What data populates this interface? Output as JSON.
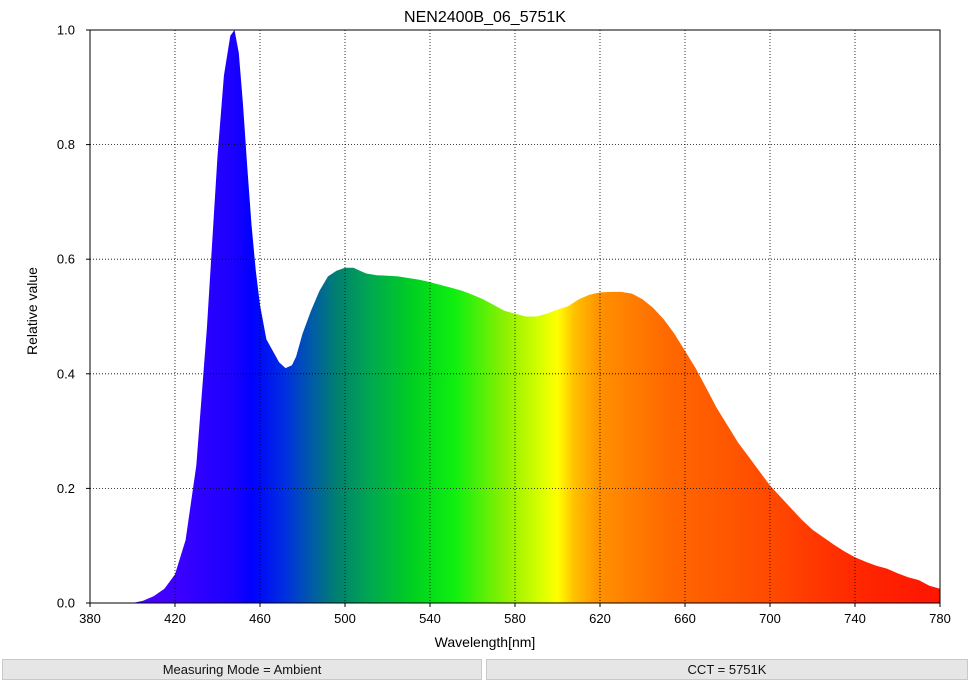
{
  "chart_data": {
    "type": "area",
    "title": "NEN2400B_06_5751K",
    "xlabel": "Wavelength[nm]",
    "ylabel": "Relative value",
    "xlim": [
      380,
      780
    ],
    "ylim": [
      0,
      1.0
    ],
    "x_ticks": [
      "380",
      "420",
      "460",
      "500",
      "540",
      "580",
      "620",
      "660",
      "700",
      "740",
      "780"
    ],
    "y_ticks": [
      "0.0",
      "0.2",
      "0.4",
      "0.6",
      "0.8",
      "1.0"
    ],
    "grid": true,
    "fill": "visible-spectrum color gradient",
    "series": [
      {
        "x": [
          400,
          405,
          410,
          415,
          420,
          425,
          430,
          435,
          440,
          443,
          446,
          448,
          450,
          452,
          454,
          456,
          458,
          460,
          463,
          466,
          469,
          472,
          475,
          477,
          480,
          484,
          488,
          492,
          496,
          500,
          504,
          507,
          510,
          515,
          520,
          525,
          530,
          535,
          540,
          545,
          550,
          555,
          560,
          565,
          570,
          575,
          580,
          585,
          590,
          595,
          600,
          605,
          610,
          615,
          620,
          625,
          630,
          635,
          640,
          645,
          650,
          655,
          660,
          665,
          670,
          675,
          680,
          685,
          690,
          695,
          700,
          705,
          710,
          715,
          720,
          725,
          730,
          735,
          740,
          745,
          750,
          755,
          760,
          765,
          770,
          775,
          780
        ],
        "y": [
          0.0,
          0.004,
          0.012,
          0.025,
          0.05,
          0.11,
          0.24,
          0.48,
          0.78,
          0.92,
          0.99,
          1.0,
          0.96,
          0.87,
          0.76,
          0.66,
          0.58,
          0.52,
          0.46,
          0.44,
          0.42,
          0.41,
          0.415,
          0.43,
          0.47,
          0.51,
          0.545,
          0.57,
          0.58,
          0.585,
          0.585,
          0.58,
          0.575,
          0.572,
          0.571,
          0.57,
          0.567,
          0.564,
          0.56,
          0.555,
          0.55,
          0.545,
          0.538,
          0.53,
          0.52,
          0.51,
          0.505,
          0.5,
          0.5,
          0.505,
          0.512,
          0.518,
          0.53,
          0.538,
          0.542,
          0.543,
          0.543,
          0.54,
          0.53,
          0.515,
          0.495,
          0.47,
          0.44,
          0.41,
          0.375,
          0.34,
          0.31,
          0.28,
          0.255,
          0.23,
          0.205,
          0.185,
          0.165,
          0.145,
          0.128,
          0.115,
          0.102,
          0.09,
          0.08,
          0.072,
          0.065,
          0.06,
          0.052,
          0.045,
          0.04,
          0.03,
          0.025
        ]
      }
    ]
  },
  "footer": {
    "measuring_mode": "Measuring Mode = Ambient",
    "cct": "CCT = 5751K"
  }
}
